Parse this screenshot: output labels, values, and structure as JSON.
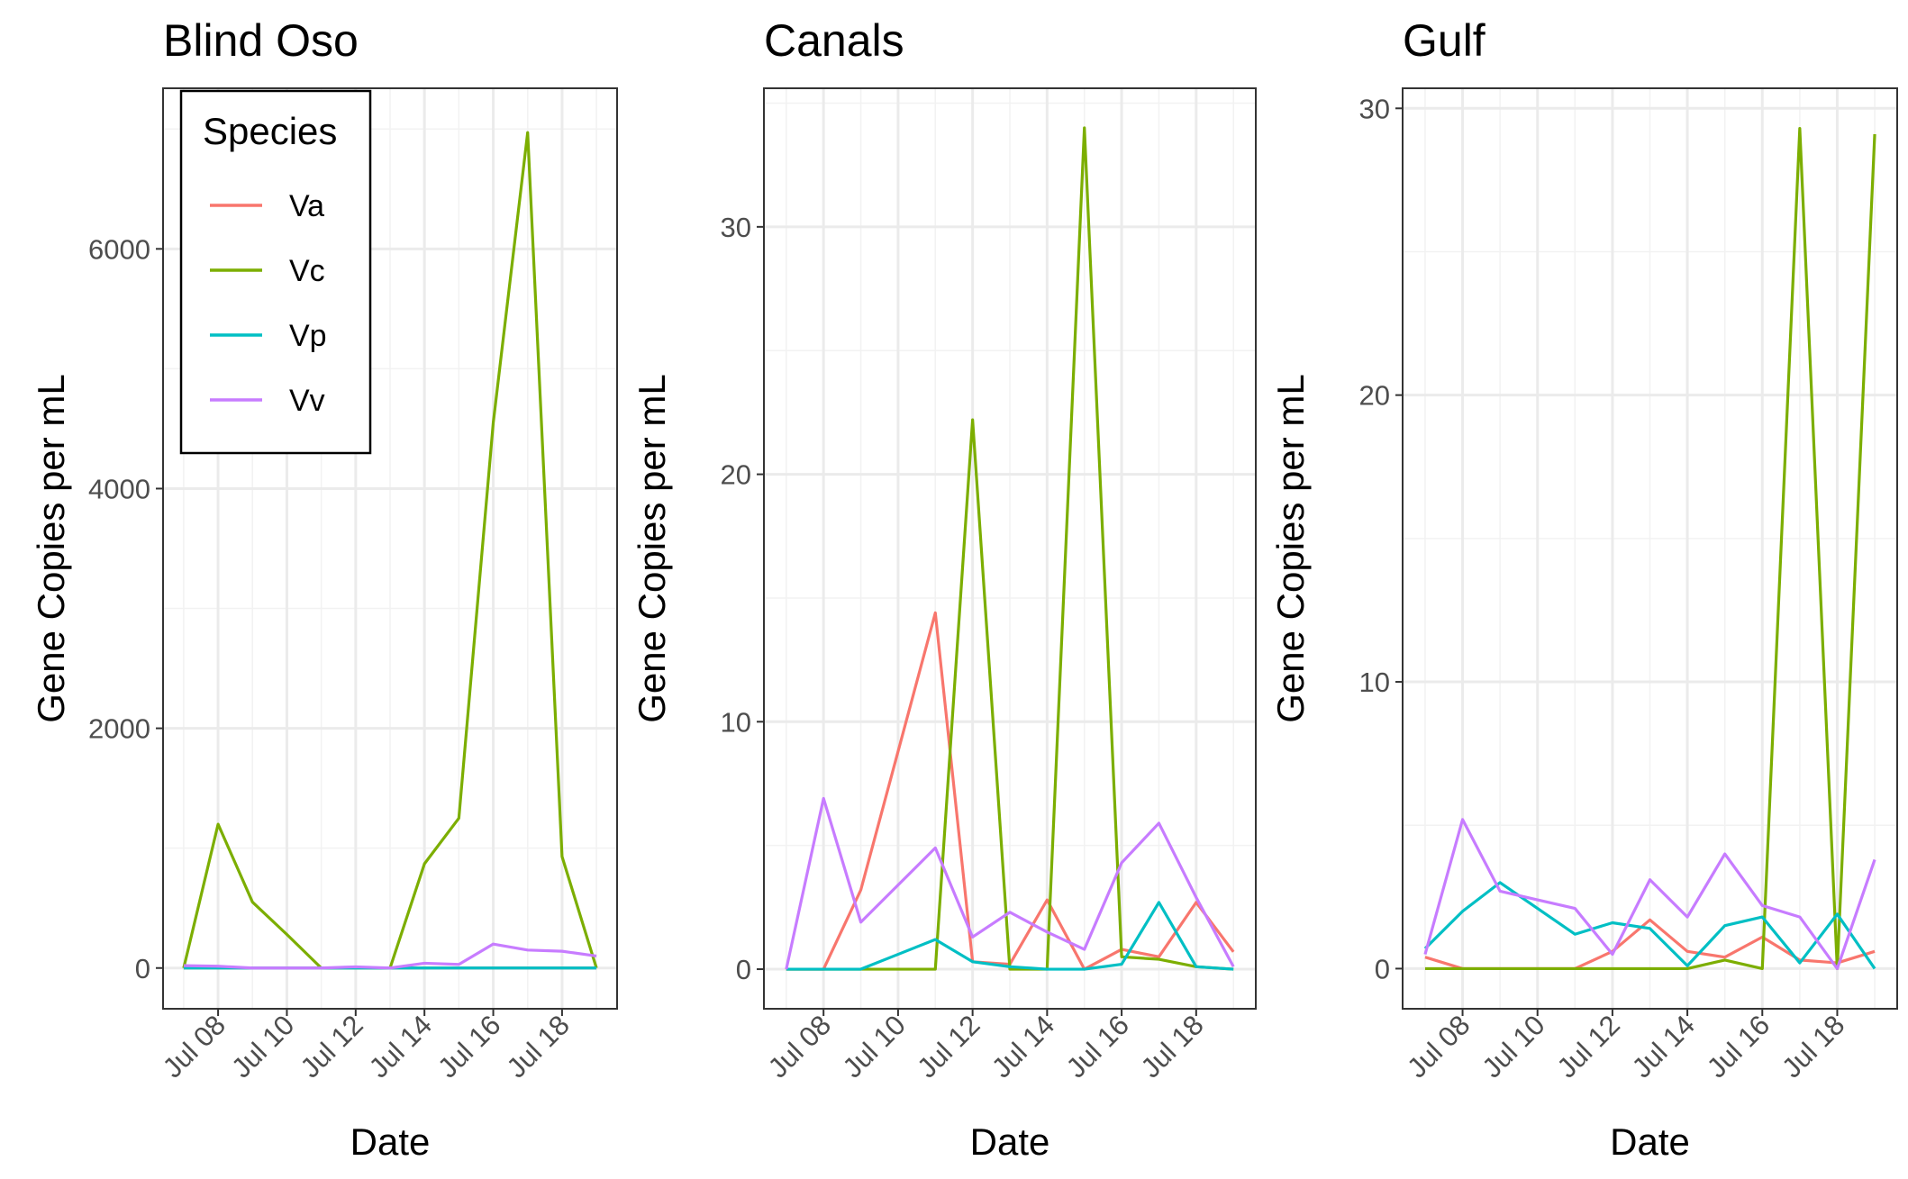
{
  "chart_data": [
    {
      "type": "line",
      "title": "Blind Oso",
      "xlabel": "Date",
      "ylabel": "Gene Copies per mL",
      "x": [
        "2019-07-07",
        "2019-07-08",
        "2019-07-09",
        "2019-07-10",
        "2019-07-11",
        "2019-07-12",
        "2019-07-13",
        "2019-07-14",
        "2019-07-15",
        "2019-07-16",
        "2019-07-17",
        "2019-07-18",
        "2019-07-19"
      ],
      "x_ticks": [
        "Jul 08",
        "Jul 10",
        "Jul 12",
        "Jul 14",
        "Jul 16",
        "Jul 18"
      ],
      "y_ticks": [
        0,
        2000,
        4000,
        6000
      ],
      "ylim": [
        -340,
        7340
      ],
      "grid": true,
      "legend": "top-left",
      "series": [
        {
          "name": "Va",
          "color": "#F8766D",
          "values": [
            0,
            0,
            0,
            0,
            0,
            0,
            0,
            0,
            0,
            0,
            0,
            0,
            0
          ]
        },
        {
          "name": "Vc",
          "color": "#7CAE00",
          "values": [
            0,
            1200,
            550,
            280,
            0,
            0,
            0,
            870,
            1250,
            4550,
            6970,
            930,
            0
          ]
        },
        {
          "name": "Vp",
          "color": "#00BFC4",
          "values": [
            0,
            0,
            0,
            0,
            0,
            0,
            0,
            0,
            0,
            0,
            0,
            0,
            0
          ]
        },
        {
          "name": "Vv",
          "color": "#C77CFF",
          "values": [
            20,
            15,
            0,
            0,
            0,
            10,
            0,
            40,
            30,
            200,
            150,
            140,
            100
          ]
        }
      ]
    },
    {
      "type": "line",
      "title": "Canals",
      "xlabel": "Date",
      "ylabel": "Gene Copies per mL",
      "x": [
        "2019-07-07",
        "2019-07-08",
        "2019-07-09",
        "2019-07-10",
        "2019-07-11",
        "2019-07-12",
        "2019-07-13",
        "2019-07-14",
        "2019-07-15",
        "2019-07-16",
        "2019-07-17",
        "2019-07-18",
        "2019-07-19"
      ],
      "x_ticks": [
        "Jul 08",
        "Jul 10",
        "Jul 12",
        "Jul 14",
        "Jul 16",
        "Jul 18"
      ],
      "y_ticks": [
        0,
        10,
        20,
        30
      ],
      "ylim": [
        -1.6,
        35.6
      ],
      "grid": true,
      "series": [
        {
          "name": "Va",
          "color": "#F8766D",
          "values": [
            0,
            0,
            3.2,
            8.8,
            14.4,
            0.3,
            0.2,
            2.8,
            0,
            0.8,
            0.5,
            2.7,
            0.7
          ]
        },
        {
          "name": "Vc",
          "color": "#7CAE00",
          "values": [
            0,
            0,
            0,
            0,
            0,
            22.2,
            0,
            0,
            34,
            0.5,
            0.4,
            0.1,
            0
          ]
        },
        {
          "name": "Vp",
          "color": "#00BFC4",
          "values": [
            0,
            0,
            0,
            0.6,
            1.2,
            0.3,
            0.1,
            0,
            0,
            0.2,
            2.7,
            0.1,
            0
          ]
        },
        {
          "name": "Vv",
          "color": "#C77CFF",
          "values": [
            0,
            6.9,
            1.9,
            3.4,
            4.9,
            1.3,
            2.3,
            1.5,
            0.8,
            4.3,
            5.9,
            2.9,
            0.1
          ]
        }
      ]
    },
    {
      "type": "line",
      "title": "Gulf",
      "xlabel": "Date",
      "ylabel": "Gene Copies per mL",
      "x": [
        "2019-07-07",
        "2019-07-08",
        "2019-07-09",
        "2019-07-10",
        "2019-07-11",
        "2019-07-12",
        "2019-07-13",
        "2019-07-14",
        "2019-07-15",
        "2019-07-16",
        "2019-07-17",
        "2019-07-18",
        "2019-07-19"
      ],
      "x_ticks": [
        "Jul 08",
        "Jul 10",
        "Jul 12",
        "Jul 14",
        "Jul 16",
        "Jul 18"
      ],
      "y_ticks": [
        0,
        10,
        20,
        30
      ],
      "ylim": [
        -1.4,
        30.7
      ],
      "grid": true,
      "series": [
        {
          "name": "Va",
          "color": "#F8766D",
          "values": [
            0.4,
            0,
            0,
            0,
            0,
            0.6,
            1.7,
            0.6,
            0.4,
            1.1,
            0.3,
            0.2,
            0.6
          ]
        },
        {
          "name": "Vc",
          "color": "#7CAE00",
          "values": [
            0,
            0,
            0,
            0,
            0,
            0,
            0,
            0,
            0.3,
            0,
            29.3,
            0,
            29.1
          ]
        },
        {
          "name": "Vp",
          "color": "#00BFC4",
          "values": [
            0.7,
            2.0,
            3.0,
            2.1,
            1.2,
            1.6,
            1.4,
            0.1,
            1.5,
            1.8,
            0.2,
            1.9,
            0
          ]
        },
        {
          "name": "Vv",
          "color": "#C77CFF",
          "values": [
            0.5,
            5.2,
            2.7,
            2.4,
            2.1,
            0.5,
            3.1,
            1.8,
            4.0,
            2.2,
            1.8,
            0,
            3.8
          ]
        }
      ]
    }
  ],
  "legend": {
    "title": "Species",
    "items": [
      {
        "name": "Va",
        "color": "#F8766D"
      },
      {
        "name": "Vc",
        "color": "#7CAE00"
      },
      {
        "name": "Vp",
        "color": "#00BFC4"
      },
      {
        "name": "Vv",
        "color": "#C77CFF"
      }
    ]
  }
}
